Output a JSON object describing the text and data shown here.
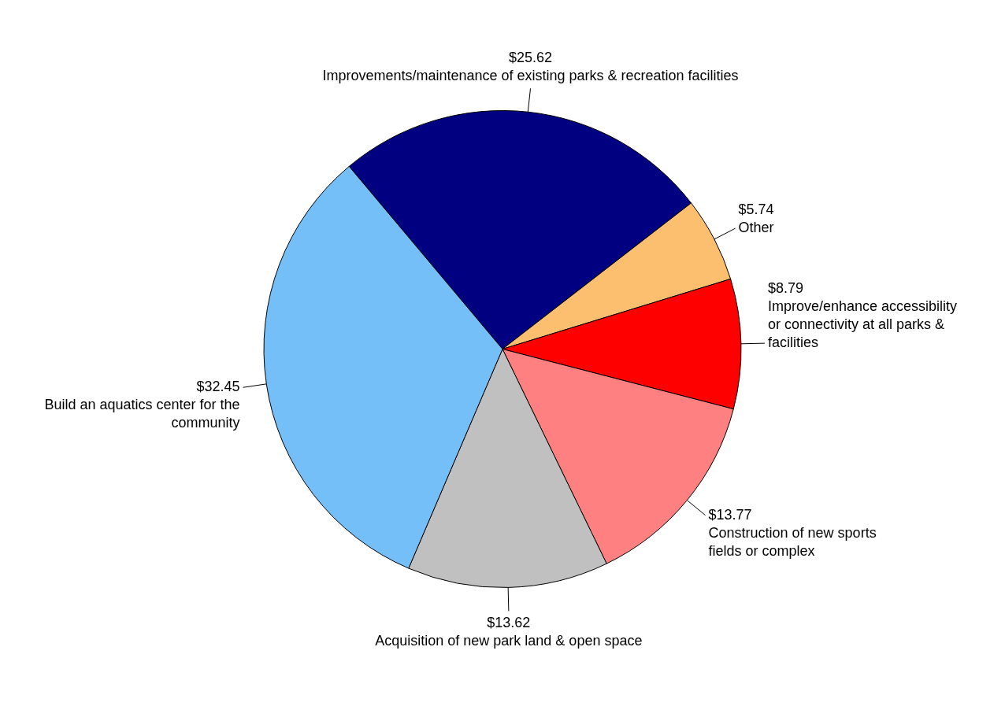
{
  "chart_data": {
    "type": "pie",
    "categories": [
      "Improvements/maintenance of existing parks & recreation facilities",
      "Other",
      "Improve/enhance accessibility or connectivity at all parks & facilities",
      "Construction of new sports fields or complex",
      "Acquisition of new park land & open space",
      "Build an aquatics center for the community"
    ],
    "values": [
      25.62,
      5.74,
      8.79,
      13.77,
      13.62,
      32.45
    ],
    "value_labels": [
      "$25.62",
      "$5.74",
      "$8.79",
      "$13.77",
      "$13.62",
      "$32.45"
    ],
    "colors": [
      "#000080",
      "#fbbf6f",
      "#ff0000",
      "#ff8080",
      "#c0c0c0",
      "#75bff9"
    ]
  }
}
